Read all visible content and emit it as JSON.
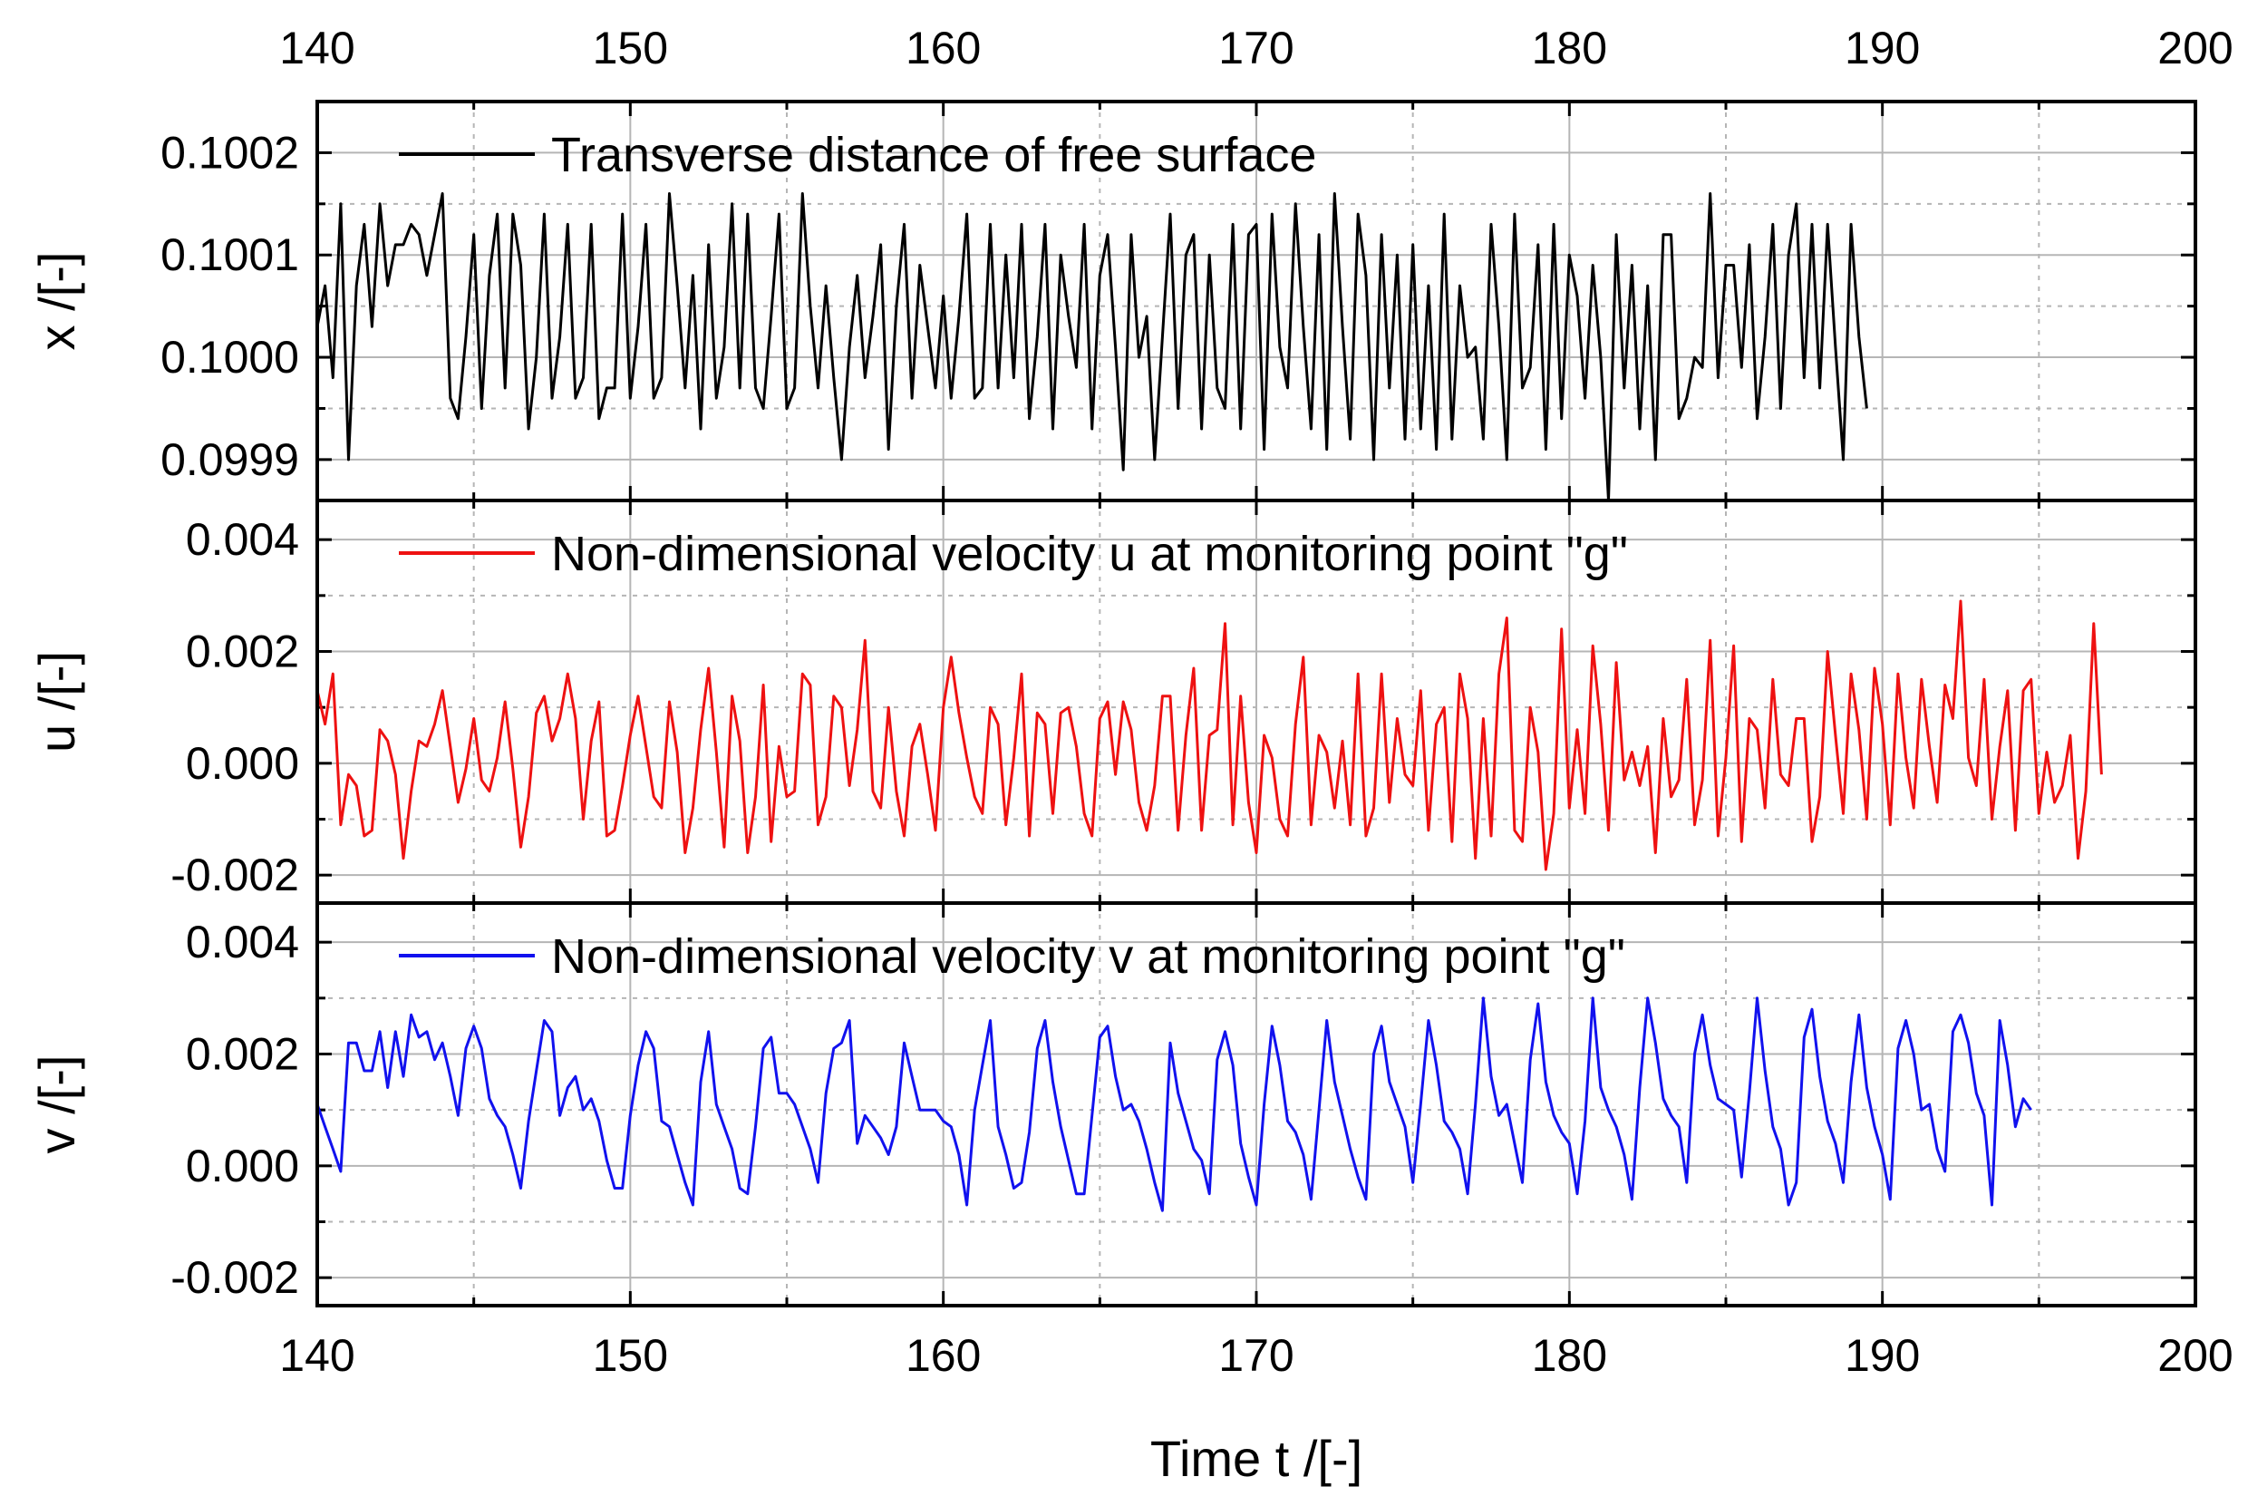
{
  "figure": {
    "xlabel": "Time t /[-]",
    "x_ticks": [
      "140",
      "150",
      "160",
      "170",
      "180",
      "190",
      "200"
    ]
  },
  "chart_data": [
    {
      "type": "line",
      "xlim": [
        140,
        200
      ],
      "ylim": [
        0.09986,
        0.10025
      ],
      "ylabel": "x /[-]",
      "y_ticks": [
        {
          "value": 0.0999,
          "label": "0.0999"
        },
        {
          "value": 0.1,
          "label": "0.1000"
        },
        {
          "value": 0.1001,
          "label": "0.1001"
        },
        {
          "value": 0.1002,
          "label": "0.1002"
        }
      ],
      "series": [
        {
          "name": "Transverse distance of free surface",
          "color": "#000000",
          "x0": 140,
          "dx": 0.25,
          "y": [
            0.10003,
            0.10007,
            0.09998,
            0.10015,
            0.0999,
            0.10007,
            0.10013,
            0.10003,
            0.10015,
            0.10007,
            0.10011,
            0.10011,
            0.10013,
            0.10012,
            0.10008,
            0.10012,
            0.10016,
            0.09996,
            0.09994,
            0.10002,
            0.10012,
            0.09995,
            0.10008,
            0.10014,
            0.09997,
            0.10014,
            0.10009,
            0.09993,
            0.1,
            0.10014,
            0.09996,
            0.10002,
            0.10013,
            0.09996,
            0.09998,
            0.10013,
            0.09994,
            0.09997,
            0.09997,
            0.10014,
            0.09996,
            0.10003,
            0.10013,
            0.09996,
            0.09998,
            0.10016,
            0.10007,
            0.09997,
            0.10008,
            0.09993,
            0.10011,
            0.09996,
            0.10001,
            0.10015,
            0.09997,
            0.10014,
            0.09997,
            0.09995,
            0.10004,
            0.10014,
            0.09995,
            0.09997,
            0.10016,
            0.10005,
            0.09997,
            0.10007,
            0.09998,
            0.0999,
            0.10001,
            0.10008,
            0.09998,
            0.10004,
            0.10011,
            0.09991,
            0.10005,
            0.10013,
            0.09996,
            0.10009,
            0.10003,
            0.09997,
            0.10006,
            0.09996,
            0.10004,
            0.10014,
            0.09996,
            0.09997,
            0.10013,
            0.09997,
            0.1001,
            0.09998,
            0.10013,
            0.09994,
            0.10002,
            0.10013,
            0.09993,
            0.1001,
            0.10004,
            0.09999,
            0.10013,
            0.09993,
            0.10008,
            0.10012,
            0.10001,
            0.09989,
            0.10012,
            0.1,
            0.10004,
            0.0999,
            0.10002,
            0.10014,
            0.09995,
            0.1001,
            0.10012,
            0.09993,
            0.1001,
            0.09997,
            0.09995,
            0.10013,
            0.09993,
            0.10012,
            0.10013,
            0.09991,
            0.10014,
            0.10001,
            0.09997,
            0.10015,
            0.10003,
            0.09993,
            0.10012,
            0.09991,
            0.10016,
            0.10003,
            0.09992,
            0.10014,
            0.10008,
            0.0999,
            0.10012,
            0.09997,
            0.1001,
            0.09992,
            0.10011,
            0.09993,
            0.10007,
            0.09991,
            0.10014,
            0.09992,
            0.10007,
            0.1,
            0.10001,
            0.09992,
            0.10013,
            0.10003,
            0.0999,
            0.10014,
            0.09997,
            0.09999,
            0.10011,
            0.09991,
            0.10013,
            0.09994,
            0.1001,
            0.10006,
            0.09996,
            0.10009,
            0.1,
            0.09986,
            0.10012,
            0.09997,
            0.10009,
            0.09993,
            0.10007,
            0.0999,
            0.10012,
            0.10012,
            0.09994,
            0.09996,
            0.1,
            0.09999,
            0.10016,
            0.09998,
            0.10009,
            0.10009,
            0.09999,
            0.10011,
            0.09994,
            0.10002,
            0.10013,
            0.09995,
            0.1001,
            0.10015,
            0.09998,
            0.10013,
            0.09997,
            0.10013,
            0.10001,
            0.0999,
            0.10013,
            0.10002,
            0.09995
          ]
        }
      ]
    },
    {
      "type": "line",
      "xlim": [
        140,
        200
      ],
      "ylim": [
        -0.0025,
        0.0047
      ],
      "ylabel": "u /[-]",
      "y_ticks": [
        {
          "value": -0.002,
          "label": "-0.002"
        },
        {
          "value": 0.0,
          "label": "0.000"
        },
        {
          "value": 0.002,
          "label": "0.002"
        },
        {
          "value": 0.004,
          "label": "0.004"
        }
      ],
      "series": [
        {
          "name": "Non-dimensional velocity u at monitoring point \"g\"",
          "color": "#ee1111",
          "x0": 140,
          "dx": 0.25,
          "y": [
            0.0013,
            0.0007,
            0.0016,
            -0.0011,
            -0.0002,
            -0.0004,
            -0.0013,
            -0.0012,
            0.0006,
            0.0004,
            -0.0002,
            -0.0017,
            -0.0005,
            0.0004,
            0.0003,
            0.0007,
            0.0013,
            0.0003,
            -0.0007,
            -0.0001,
            0.0008,
            -0.0003,
            -0.0005,
            0.0001,
            0.0011,
            -0.0001,
            -0.0015,
            -0.0006,
            0.0009,
            0.0012,
            0.0004,
            0.0008,
            0.0016,
            0.0008,
            -0.001,
            0.0004,
            0.0011,
            -0.0013,
            -0.0012,
            -0.0004,
            0.0005,
            0.0012,
            0.0003,
            -0.0006,
            -0.0008,
            0.0011,
            0.0002,
            -0.0016,
            -0.0008,
            0.0006,
            0.0017,
            0.0002,
            -0.0015,
            0.0012,
            0.0004,
            -0.0016,
            -0.0006,
            0.0014,
            -0.0014,
            0.0003,
            -0.0006,
            -0.0005,
            0.0016,
            0.0014,
            -0.0011,
            -0.0006,
            0.0012,
            0.001,
            -0.0004,
            0.0006,
            0.0022,
            -0.0005,
            -0.0008,
            0.001,
            -0.0005,
            -0.0013,
            0.0003,
            0.0007,
            -0.0002,
            -0.0012,
            0.001,
            0.0019,
            0.0009,
            0.0001,
            -0.0006,
            -0.0009,
            0.001,
            0.0007,
            -0.0011,
            0.0001,
            0.0016,
            -0.0013,
            0.0009,
            0.0007,
            -0.0009,
            0.0009,
            0.001,
            0.0003,
            -0.0009,
            -0.0013,
            0.0008,
            0.0011,
            -0.0002,
            0.0011,
            0.0006,
            -0.0007,
            -0.0012,
            -0.0004,
            0.0012,
            0.0012,
            -0.0012,
            0.0005,
            0.0017,
            -0.0012,
            0.0005,
            0.0006,
            0.0025,
            -0.0011,
            0.0012,
            -0.0007,
            -0.0016,
            0.0005,
            0.0001,
            -0.001,
            -0.0013,
            0.0007,
            0.0019,
            -0.0011,
            0.0005,
            0.0002,
            -0.0008,
            0.0004,
            -0.0011,
            0.0016,
            -0.0013,
            -0.0008,
            0.0016,
            -0.0007,
            0.0008,
            -0.0002,
            -0.0004,
            0.0013,
            -0.0012,
            0.0007,
            0.001,
            -0.0014,
            0.0016,
            0.0008,
            -0.0017,
            0.0008,
            -0.0013,
            0.0016,
            0.0026,
            -0.0012,
            -0.0014,
            0.001,
            0.0002,
            -0.0019,
            -0.0009,
            0.0024,
            -0.0008,
            0.0006,
            -0.0009,
            0.0021,
            0.0007,
            -0.0012,
            0.0018,
            -0.0003,
            0.0002,
            -0.0004,
            0.0003,
            -0.0016,
            0.0008,
            -0.0006,
            -0.0003,
            0.0015,
            -0.0011,
            -0.0003,
            0.0022,
            -0.0013,
            0.0001,
            0.0021,
            -0.0014,
            0.0008,
            0.0006,
            -0.0008,
            0.0015,
            -0.0002,
            -0.0004,
            0.0008,
            0.0008,
            -0.0014,
            -0.0006,
            0.002,
            0.0005,
            -0.0009,
            0.0016,
            0.0006,
            -0.001,
            0.0017,
            0.0007,
            -0.0011,
            0.0016,
            0.0001,
            -0.0008,
            0.0015,
            0.0003,
            -0.0007,
            0.0014,
            0.0008,
            0.0029,
            0.0001,
            -0.0004,
            0.0015,
            -0.001,
            0.0003,
            0.0013,
            -0.0012,
            0.0013,
            0.0015,
            -0.0009,
            0.0002,
            -0.0007,
            -0.0004,
            0.0005,
            -0.0017,
            -0.0005,
            0.0025,
            -0.0002
          ]
        }
      ]
    },
    {
      "type": "line",
      "xlim": [
        140,
        200
      ],
      "ylim": [
        -0.0025,
        0.0047
      ],
      "ylabel": "v /[-]",
      "y_ticks": [
        {
          "value": -0.002,
          "label": "-0.002"
        },
        {
          "value": 0.0,
          "label": "0.000"
        },
        {
          "value": 0.002,
          "label": "0.002"
        },
        {
          "value": 0.004,
          "label": "0.004"
        }
      ],
      "series": [
        {
          "name": "Non-dimensional velocity v at monitoring point \"g\"",
          "color": "#1111ee",
          "x0": 140,
          "dx": 0.25,
          "y": [
            0.0011,
            0.0007,
            0.0003,
            -0.0001,
            0.0022,
            0.0022,
            0.0017,
            0.0017,
            0.0024,
            0.0014,
            0.0024,
            0.0016,
            0.0027,
            0.0023,
            0.0024,
            0.0019,
            0.0022,
            0.0016,
            0.0009,
            0.0021,
            0.0025,
            0.0021,
            0.0012,
            0.0009,
            0.0007,
            0.0002,
            -0.0004,
            0.0008,
            0.0017,
            0.0026,
            0.0024,
            0.0009,
            0.0014,
            0.0016,
            0.001,
            0.0012,
            0.0008,
            0.0001,
            -0.0004,
            -0.0004,
            0.0009,
            0.0018,
            0.0024,
            0.0021,
            0.0008,
            0.0007,
            0.0002,
            -0.0003,
            -0.0007,
            0.0015,
            0.0024,
            0.0011,
            0.0007,
            0.0003,
            -0.0004,
            -0.0005,
            0.0007,
            0.0021,
            0.0023,
            0.0013,
            0.0013,
            0.0011,
            0.0007,
            0.0003,
            -0.0003,
            0.0013,
            0.0021,
            0.0022,
            0.0026,
            0.0004,
            0.0009,
            0.0007,
            0.0005,
            0.0002,
            0.0007,
            0.0022,
            0.0016,
            0.001,
            0.001,
            0.001,
            0.0008,
            0.0007,
            0.0002,
            -0.0007,
            0.001,
            0.0018,
            0.0026,
            0.0007,
            0.0002,
            -0.0004,
            -0.0003,
            0.0006,
            0.0021,
            0.0026,
            0.0015,
            0.0007,
            0.0001,
            -0.0005,
            -0.0005,
            0.0009,
            0.0023,
            0.0025,
            0.0016,
            0.001,
            0.0011,
            0.0008,
            0.0003,
            -0.0003,
            -0.0008,
            0.0022,
            0.0013,
            0.0008,
            0.0003,
            0.0001,
            -0.0005,
            0.0019,
            0.0024,
            0.0018,
            0.0004,
            -0.0002,
            -0.0007,
            0.0011,
            0.0025,
            0.0018,
            0.0008,
            0.0006,
            0.0002,
            -0.0006,
            0.001,
            0.0026,
            0.0015,
            0.0009,
            0.0003,
            -0.0002,
            -0.0006,
            0.002,
            0.0025,
            0.0015,
            0.0011,
            0.0007,
            -0.0003,
            0.0011,
            0.0026,
            0.0018,
            0.0008,
            0.0006,
            0.0003,
            -0.0005,
            0.0011,
            0.003,
            0.0016,
            0.0009,
            0.0011,
            0.0004,
            -0.0003,
            0.0019,
            0.0029,
            0.0015,
            0.0009,
            0.0006,
            0.0004,
            -0.0005,
            0.0008,
            0.003,
            0.0014,
            0.001,
            0.0007,
            0.0002,
            -0.0006,
            0.0014,
            0.003,
            0.0022,
            0.0012,
            0.0009,
            0.0007,
            -0.0003,
            0.002,
            0.0027,
            0.0018,
            0.0012,
            0.0011,
            0.001,
            -0.0002,
            0.0013,
            0.003,
            0.0017,
            0.0007,
            0.0003,
            -0.0007,
            -0.0003,
            0.0023,
            0.0028,
            0.0016,
            0.0008,
            0.0004,
            -0.0003,
            0.0015,
            0.0027,
            0.0014,
            0.0007,
            0.0002,
            -0.0006,
            0.0021,
            0.0026,
            0.002,
            0.001,
            0.0011,
            0.0003,
            -0.0001,
            0.0024,
            0.0027,
            0.0022,
            0.0013,
            0.0009,
            -0.0007,
            0.0026,
            0.0018,
            0.0007,
            0.0012,
            0.001
          ]
        }
      ]
    }
  ]
}
